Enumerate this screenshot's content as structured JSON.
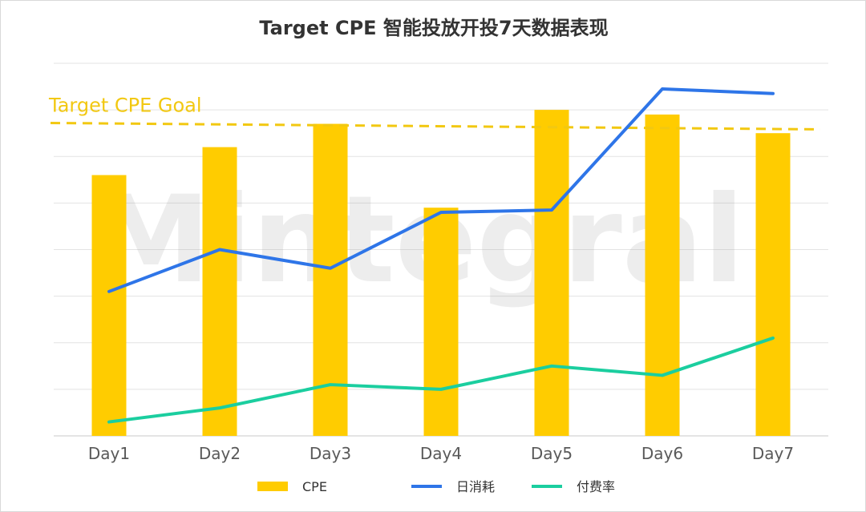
{
  "chart_data": {
    "type": "bar",
    "title": "Target CPE 智能投放开投7天数据表现",
    "categories": [
      "Day1",
      "Day2",
      "Day3",
      "Day4",
      "Day5",
      "Day6",
      "Day7"
    ],
    "ylim": [
      0,
      8
    ],
    "grid": true,
    "series": [
      {
        "name": "CPE",
        "type": "bar",
        "color": "#FFCC00",
        "values": [
          5.6,
          6.2,
          6.7,
          4.9,
          7.0,
          6.9,
          6.5
        ]
      },
      {
        "name": "日消耗",
        "type": "line",
        "color": "#2E75E8",
        "values": [
          3.1,
          4.0,
          3.6,
          4.8,
          4.85,
          7.45,
          7.35
        ]
      },
      {
        "name": "付费率",
        "type": "line",
        "color": "#1BCE9F",
        "values": [
          0.3,
          0.6,
          1.1,
          1.0,
          1.5,
          1.3,
          2.1
        ]
      }
    ],
    "reference_line": {
      "label": "Target CPE Goal",
      "value": 6.65,
      "color": "#F2C811",
      "style": "dashed"
    },
    "legend": {
      "position": "bottom"
    },
    "watermark": "Mintegral"
  }
}
